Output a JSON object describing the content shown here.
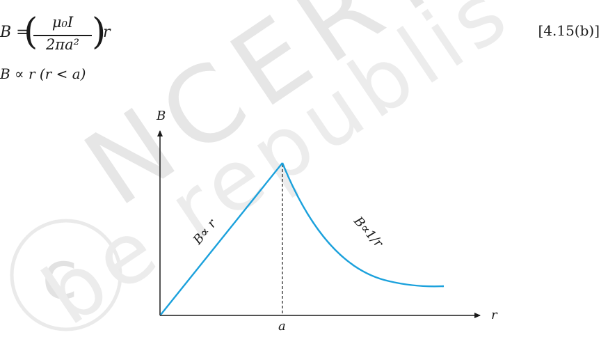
{
  "equation": {
    "lhs": "B =",
    "numerator": "μ₀I",
    "denominator": "2πa²",
    "rhs": "r",
    "number": "[4.15(b)]",
    "proportionality": "B ∝ r        (r < a)"
  },
  "diagram": {
    "y_axis_label": "B",
    "x_axis_label": "r",
    "x_marker_label": "a",
    "inside_label": "B∝ r",
    "outside_label": "B∝1/r",
    "curve_color": "#1ba1dc",
    "axis_color": "#1a1a1a"
  },
  "watermark": {
    "text": "© NCERT not to be republished",
    "color": "#d8d8d8"
  }
}
